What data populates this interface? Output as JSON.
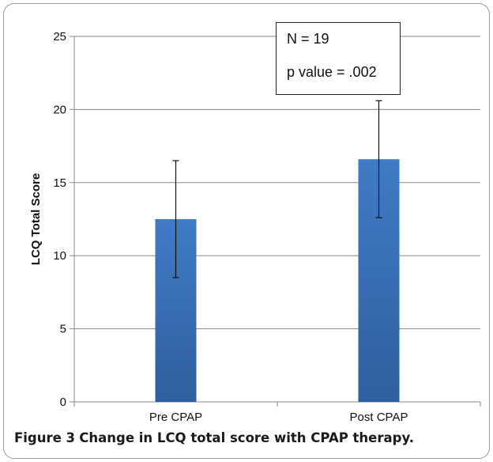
{
  "chart_data": {
    "type": "bar",
    "categories": [
      "Pre CPAP",
      "Post CPAP"
    ],
    "series": [
      {
        "values": [
          12.5,
          16.6
        ],
        "error": [
          4.0,
          4.0
        ],
        "color": "#3a70b8"
      }
    ],
    "xlabel": "",
    "ylabel": "LCQ Total Score",
    "ylim": [
      0,
      25
    ],
    "yticks": [
      0,
      5,
      10,
      15,
      20,
      25
    ],
    "grid": true,
    "annotations": [
      "N = 19",
      "p value = .002"
    ]
  },
  "caption": {
    "label": "Figure 3",
    "text": "Change in LCQ total score with CPAP therapy."
  },
  "colors": {
    "bar_top": "#3f7bc6",
    "bar_bottom": "#2f5f9e",
    "grid": "#8a8a8a",
    "axis": "#8a8a8a",
    "text": "#111111"
  }
}
